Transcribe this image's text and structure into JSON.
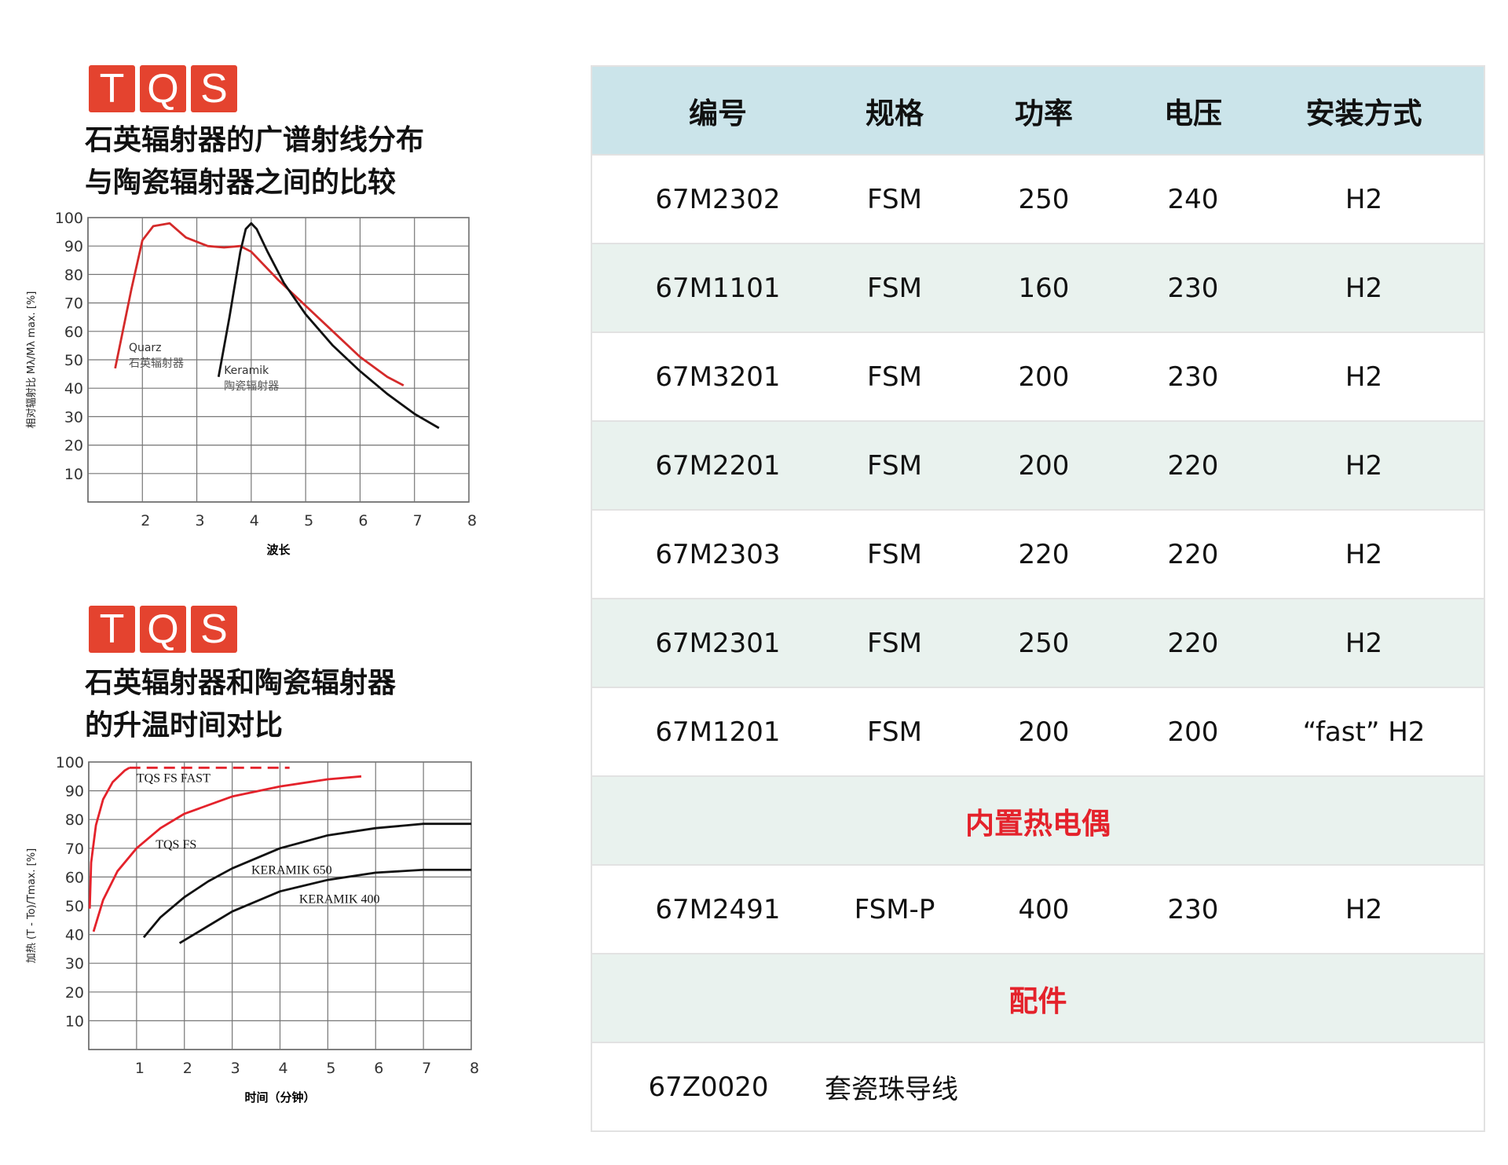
{
  "logo": {
    "letters": [
      "T",
      "Q",
      "S"
    ],
    "color": "#e4432f"
  },
  "section1": {
    "title_line1": "石英辐射器的广谱射线分布",
    "title_line2": "与陶瓷辐射器之间的比较"
  },
  "section2": {
    "title_line1": "石英辐射器和陶瓷辐射器",
    "title_line2": "的升温时间对比"
  },
  "table": {
    "headers": [
      "编号",
      "规格",
      "功率",
      "电压",
      "安装方式"
    ],
    "rows": [
      [
        "67M2302",
        "FSM",
        "250",
        "240",
        "H2"
      ],
      [
        "67M1101",
        "FSM",
        "160",
        "230",
        "H2"
      ],
      [
        "67M3201",
        "FSM",
        "200",
        "230",
        "H2"
      ],
      [
        "67M2201",
        "FSM",
        "200",
        "220",
        "H2"
      ],
      [
        "67M2303",
        "FSM",
        "220",
        "220",
        "H2"
      ],
      [
        "67M2301",
        "FSM",
        "250",
        "220",
        "H2"
      ],
      [
        "67M1201",
        "FSM",
        "200",
        "200",
        "“fast” H2"
      ]
    ],
    "section_thermocouple": "内置热电偶",
    "thermo_rows": [
      [
        "67M2491",
        "FSM-P",
        "400",
        "230",
        "H2"
      ]
    ],
    "section_accessories": "配件",
    "accessory": {
      "code": "67Z0020",
      "name": "套瓷珠导线"
    },
    "header_bg": "#cbe4ea",
    "alt_bg": "#e9f2ee",
    "section_color": "#e4222b"
  },
  "chart_data": [
    {
      "type": "line",
      "xlabel": "波长",
      "ylabel": "相对辐射比 Mλ/Mλ max. [%]",
      "xlim": [
        1,
        8
      ],
      "ylim": [
        0,
        100
      ],
      "grid": true,
      "xticks": [
        2,
        3,
        4,
        5,
        6,
        7,
        8
      ],
      "yticks": [
        10,
        20,
        30,
        40,
        50,
        60,
        70,
        80,
        90,
        100
      ],
      "series": [
        {
          "name": "Quarz 石英辐射器",
          "color": "#d42a2a",
          "x": [
            1.5,
            1.8,
            2.0,
            2.2,
            2.5,
            2.8,
            3.2,
            3.5,
            3.8,
            4.0,
            4.5,
            5,
            5.5,
            6,
            6.5,
            6.8
          ],
          "y": [
            47,
            75,
            92,
            97,
            98,
            93,
            90,
            89.5,
            90,
            88,
            78,
            69,
            60,
            51,
            44,
            41
          ]
        },
        {
          "name": "Keramik 陶瓷辐射器",
          "color": "#111111",
          "x": [
            3.4,
            3.6,
            3.8,
            3.9,
            4.0,
            4.1,
            4.3,
            4.6,
            5,
            5.5,
            6,
            6.5,
            7,
            7.45
          ],
          "y": [
            44,
            65,
            88,
            96,
            98,
            96,
            88,
            77,
            66,
            55,
            46,
            38,
            31,
            26
          ]
        }
      ]
    },
    {
      "type": "line",
      "xlabel": "时间（分钟）",
      "ylabel": "加热 (T - To)/Tmax. [%]",
      "xlim": [
        0,
        8
      ],
      "ylim": [
        0,
        100
      ],
      "grid": true,
      "xticks": [
        1,
        2,
        3,
        4,
        5,
        6,
        7,
        8
      ],
      "yticks": [
        10,
        20,
        30,
        40,
        50,
        60,
        70,
        80,
        90,
        100
      ],
      "series": [
        {
          "name": "TQS FS FAST",
          "color": "#e4222b",
          "x": [
            0.02,
            0.05,
            0.15,
            0.3,
            0.5,
            0.75,
            0.85
          ],
          "y": [
            49,
            65,
            78,
            87,
            93,
            97,
            98
          ],
          "dashed_continuation": {
            "x": [
              0.85,
              4.2
            ],
            "y": [
              98,
              98
            ]
          }
        },
        {
          "name": "TQS FS",
          "color": "#e4222b",
          "x": [
            0.1,
            0.3,
            0.6,
            1,
            1.5,
            2,
            3,
            4,
            5,
            5.7
          ],
          "y": [
            41,
            52,
            62,
            70,
            77,
            82,
            88,
            91.5,
            94,
            95
          ]
        },
        {
          "name": "KERAMIK 650",
          "color": "#111111",
          "x": [
            1.15,
            1.5,
            2,
            2.5,
            3,
            4,
            5,
            6,
            7,
            8
          ],
          "y": [
            39,
            46,
            53,
            58.5,
            63,
            70,
            74.5,
            77,
            78.5,
            78.5
          ]
        },
        {
          "name": "KERAMIK 400",
          "color": "#111111",
          "x": [
            1.9,
            2.5,
            3,
            4,
            5,
            6,
            7,
            8
          ],
          "y": [
            37,
            43,
            48,
            55,
            59,
            61.5,
            62.5,
            62.5
          ]
        }
      ]
    }
  ]
}
